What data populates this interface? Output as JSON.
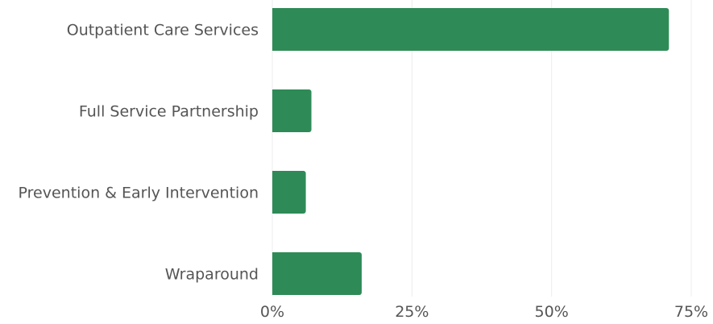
{
  "chart_data": {
    "type": "bar",
    "orientation": "horizontal",
    "title": "",
    "xlabel": "",
    "ylabel": "",
    "categories": [
      "Outpatient Care Services",
      "Full Service Partnership",
      "Prevention & Early Intervention",
      "Wraparound"
    ],
    "values": [
      71,
      7,
      6,
      16
    ],
    "unit": "%",
    "xlim": [
      0,
      75
    ],
    "xticks": [
      {
        "value": 0,
        "label": "0%"
      },
      {
        "value": 25,
        "label": "25%"
      },
      {
        "value": 50,
        "label": "50%"
      },
      {
        "value": 75,
        "label": "75%"
      }
    ],
    "grid": true,
    "legend": "none",
    "bar_color": "#2e8b57",
    "grid_color": "#ececec",
    "text_color": "#555555"
  }
}
